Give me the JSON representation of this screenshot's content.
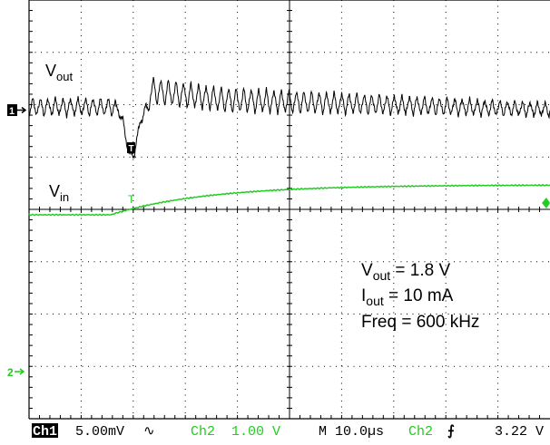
{
  "chart_data": {
    "type": "line",
    "title": "",
    "xlabel": "",
    "ylabel": "",
    "grid": true,
    "divisions": {
      "x": 10,
      "y": 8
    },
    "series": [
      {
        "label_main": "V",
        "label_sub": "out",
        "color": "#000000"
      },
      {
        "label_main": "V",
        "label_sub": "in",
        "color": "#22cc22"
      }
    ],
    "annotations": [
      {
        "main": "V",
        "sub": "out",
        "rest": " = 1.8 V"
      },
      {
        "main": "I",
        "sub": "out",
        "rest": " = 10 mA"
      },
      {
        "main": "Freq = 600 kHz",
        "sub": "",
        "rest": ""
      }
    ],
    "markers": {
      "ch1": "1",
      "ch2": "2",
      "trigger_time": "T"
    }
  },
  "status_bar": {
    "ch1_label": "Ch1",
    "ch1_scale": "5.00mV",
    "ch1_coupling": "∿",
    "ch2_label": "Ch2",
    "ch2_scale": "1.00 V",
    "timebase": "M 10.0µs",
    "trigger_source": "Ch2",
    "trigger_slope": "⨍",
    "trigger_level": "3.22 V"
  },
  "colors": {
    "ch1": "#000000",
    "ch2": "#22cc22",
    "grid": "#000000",
    "background": "#ffffff"
  }
}
